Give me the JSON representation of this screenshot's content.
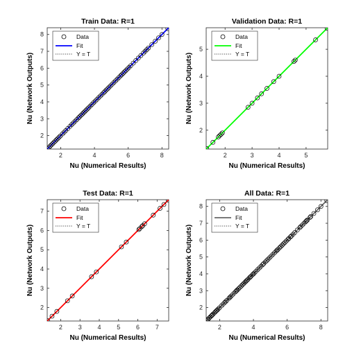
{
  "chart_data": [
    {
      "type": "scatter",
      "title": "Train Data: R=1",
      "xlabel": "Nu (Numerical Results)",
      "ylabel": "Nu (Network Outputs)",
      "xlim": [
        1.2,
        8.4
      ],
      "ylim": [
        1.2,
        8.4
      ],
      "xticks": [
        2,
        4,
        6,
        8
      ],
      "yticks": [
        2,
        3,
        4,
        5,
        6,
        7,
        8
      ],
      "fit_color": "#0000ff",
      "legend": {
        "location": "top-left",
        "entries": [
          "Data",
          "Fit",
          "Y = T"
        ]
      },
      "x": [
        1.22,
        1.3,
        1.38,
        1.45,
        1.52,
        1.6,
        1.68,
        1.75,
        1.82,
        1.9,
        1.98,
        2.1,
        2.2,
        2.3,
        2.42,
        2.55,
        2.65,
        2.75,
        2.85,
        2.95,
        3.05,
        3.12,
        3.2,
        3.28,
        3.35,
        3.42,
        3.5,
        3.58,
        3.66,
        3.75,
        3.85,
        3.95,
        4.05,
        4.15,
        4.25,
        4.35,
        4.45,
        4.55,
        4.62,
        4.7,
        4.78,
        4.86,
        4.95,
        5.05,
        5.15,
        5.25,
        5.35,
        5.45,
        5.55,
        5.62,
        5.7,
        5.78,
        5.86,
        5.95,
        6.05,
        6.15,
        6.3,
        6.45,
        6.6,
        6.75,
        6.9,
        7.0,
        7.1,
        7.2,
        7.4,
        7.6,
        7.8,
        8.0,
        8.35
      ],
      "y": [
        1.22,
        1.3,
        1.38,
        1.45,
        1.52,
        1.6,
        1.68,
        1.75,
        1.82,
        1.9,
        1.98,
        2.1,
        2.2,
        2.3,
        2.42,
        2.55,
        2.65,
        2.75,
        2.85,
        2.95,
        3.05,
        3.12,
        3.2,
        3.28,
        3.35,
        3.42,
        3.5,
        3.58,
        3.66,
        3.75,
        3.85,
        3.95,
        4.05,
        4.15,
        4.25,
        4.35,
        4.45,
        4.55,
        4.62,
        4.7,
        4.78,
        4.86,
        4.95,
        5.05,
        5.15,
        5.25,
        5.35,
        5.45,
        5.55,
        5.62,
        5.7,
        5.78,
        5.86,
        5.95,
        6.05,
        6.15,
        6.3,
        6.45,
        6.6,
        6.75,
        6.9,
        7.0,
        7.1,
        7.2,
        7.4,
        7.6,
        7.8,
        8.0,
        8.35
      ]
    },
    {
      "type": "scatter",
      "title": "Validation Data: R=1",
      "xlabel": "Nu (Numerical Results)",
      "ylabel": "Nu (Network Outputs)",
      "xlim": [
        1.3,
        5.8
      ],
      "ylim": [
        1.3,
        5.8
      ],
      "xticks": [
        2,
        3,
        4,
        5
      ],
      "yticks": [
        2,
        3,
        4,
        5
      ],
      "fit_color": "#00ff00",
      "legend": {
        "location": "top-left",
        "entries": [
          "Data",
          "Fit",
          "Y = T"
        ]
      },
      "x": [
        1.32,
        1.55,
        1.75,
        1.8,
        1.85,
        1.9,
        2.85,
        3.0,
        3.2,
        3.35,
        3.55,
        3.8,
        4.0,
        4.55,
        4.6,
        5.35,
        5.78
      ],
      "y": [
        1.32,
        1.55,
        1.75,
        1.8,
        1.85,
        1.9,
        2.85,
        3.0,
        3.2,
        3.35,
        3.55,
        3.8,
        4.0,
        4.55,
        4.6,
        5.35,
        5.78
      ]
    },
    {
      "type": "scatter",
      "title": "Test Data: R=1",
      "xlabel": "Nu (Numerical Results)",
      "ylabel": "Nu (Network Outputs)",
      "xlim": [
        1.3,
        7.6
      ],
      "ylim": [
        1.3,
        7.6
      ],
      "xticks": [
        2,
        3,
        4,
        5,
        6,
        7
      ],
      "yticks": [
        2,
        3,
        4,
        5,
        6,
        7
      ],
      "fit_color": "#ff0000",
      "legend": {
        "location": "top-left",
        "entries": [
          "Data",
          "Fit",
          "Y = T"
        ]
      },
      "x": [
        1.32,
        1.55,
        1.8,
        2.35,
        2.6,
        3.6,
        3.85,
        5.15,
        5.4,
        6.05,
        6.1,
        6.2,
        6.25,
        6.35,
        6.8,
        7.15,
        7.35,
        7.58
      ],
      "y": [
        1.32,
        1.55,
        1.8,
        2.35,
        2.6,
        3.6,
        3.85,
        5.15,
        5.4,
        6.05,
        6.1,
        6.2,
        6.25,
        6.35,
        6.8,
        7.15,
        7.35,
        7.58
      ]
    },
    {
      "type": "scatter",
      "title": "All Data: R=1",
      "xlabel": "Nu (Numerical Results)",
      "ylabel": "Nu (Network Outputs)",
      "xlim": [
        1.2,
        8.4
      ],
      "ylim": [
        1.2,
        8.4
      ],
      "xticks": [
        2,
        4,
        6,
        8
      ],
      "yticks": [
        2,
        3,
        4,
        5,
        6,
        7,
        8
      ],
      "fit_color": "#666666",
      "legend": {
        "location": "top-left",
        "entries": [
          "Data",
          "Fit",
          "Y = T"
        ]
      },
      "x": [
        1.22,
        1.28,
        1.32,
        1.38,
        1.45,
        1.52,
        1.55,
        1.6,
        1.68,
        1.75,
        1.8,
        1.85,
        1.9,
        1.98,
        2.1,
        2.2,
        2.3,
        2.35,
        2.42,
        2.55,
        2.6,
        2.65,
        2.75,
        2.85,
        2.95,
        3.0,
        3.05,
        3.12,
        3.2,
        3.28,
        3.35,
        3.42,
        3.5,
        3.55,
        3.6,
        3.66,
        3.75,
        3.8,
        3.85,
        3.95,
        4.0,
        4.05,
        4.15,
        4.25,
        4.35,
        4.45,
        4.55,
        4.6,
        4.7,
        4.78,
        4.86,
        4.95,
        5.05,
        5.15,
        5.25,
        5.35,
        5.4,
        5.45,
        5.55,
        5.62,
        5.7,
        5.78,
        5.86,
        5.95,
        6.05,
        6.1,
        6.2,
        6.25,
        6.35,
        6.45,
        6.6,
        6.75,
        6.8,
        6.9,
        7.0,
        7.1,
        7.15,
        7.2,
        7.35,
        7.4,
        7.58,
        7.8,
        8.0,
        8.35
      ],
      "y": [
        1.22,
        1.28,
        1.32,
        1.38,
        1.45,
        1.52,
        1.55,
        1.6,
        1.68,
        1.75,
        1.8,
        1.85,
        1.9,
        1.98,
        2.1,
        2.2,
        2.3,
        2.35,
        2.42,
        2.55,
        2.6,
        2.65,
        2.75,
        2.85,
        2.95,
        3.0,
        3.05,
        3.12,
        3.2,
        3.28,
        3.35,
        3.42,
        3.5,
        3.55,
        3.6,
        3.66,
        3.75,
        3.8,
        3.85,
        3.95,
        4.0,
        4.05,
        4.15,
        4.25,
        4.35,
        4.45,
        4.55,
        4.6,
        4.7,
        4.78,
        4.86,
        4.95,
        5.05,
        5.15,
        5.25,
        5.35,
        5.4,
        5.45,
        5.55,
        5.62,
        5.7,
        5.78,
        5.86,
        5.95,
        6.05,
        6.1,
        6.2,
        6.25,
        6.35,
        6.45,
        6.6,
        6.75,
        6.8,
        6.9,
        7.0,
        7.1,
        7.15,
        7.2,
        7.35,
        7.4,
        7.58,
        7.8,
        8.0,
        8.35
      ]
    }
  ]
}
